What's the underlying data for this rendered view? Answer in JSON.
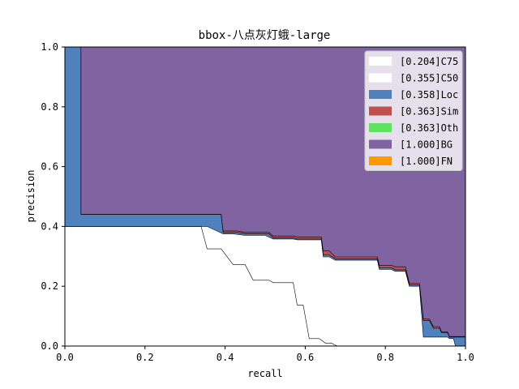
{
  "chart_data": {
    "type": "area",
    "title": "bbox-八点灰灯蛾-large",
    "xlabel": "recall",
    "ylabel": "precision",
    "xlim": [
      0,
      1
    ],
    "ylim": [
      0,
      1
    ],
    "x_ticks": [
      "0.0",
      "0.2",
      "0.4",
      "0.6",
      "0.8",
      "1.0"
    ],
    "y_ticks": [
      "0.0",
      "0.2",
      "0.4",
      "0.6",
      "0.8",
      "1.0"
    ],
    "grid": false,
    "legend_position": "top-right",
    "legend": [
      {
        "label": "[0.204]C75",
        "color": "#ffffff"
      },
      {
        "label": "[0.355]C50",
        "color": "#ffffff"
      },
      {
        "label": "[0.358]Loc",
        "color": "#4f81bd"
      },
      {
        "label": "[0.363]Sim",
        "color": "#c0504d"
      },
      {
        "label": "[0.363]Oth",
        "color": "#5ee35e"
      },
      {
        "label": "[1.000]BG",
        "color": "#8064a2"
      },
      {
        "label": "[1.000]FN",
        "color": "#ff9900"
      }
    ],
    "series": [
      {
        "name": "[0.204]C75",
        "points": [
          [
            0,
            0.4
          ],
          [
            0.34,
            0.4
          ],
          [
            0.355,
            0.325
          ],
          [
            0.39,
            0.325
          ],
          [
            0.42,
            0.272
          ],
          [
            0.45,
            0.272
          ],
          [
            0.47,
            0.22
          ],
          [
            0.51,
            0.22
          ],
          [
            0.52,
            0.212
          ],
          [
            0.57,
            0.212
          ],
          [
            0.58,
            0.137
          ],
          [
            0.595,
            0.137
          ],
          [
            0.61,
            0.025
          ],
          [
            0.635,
            0.025
          ],
          [
            0.65,
            0.01
          ],
          [
            0.665,
            0.01
          ],
          [
            0.68,
            0
          ],
          [
            1,
            0
          ]
        ]
      },
      {
        "name": "[0.355]C50",
        "points": [
          [
            0,
            0.4
          ],
          [
            0.34,
            0.4
          ],
          [
            0.355,
            0.4
          ],
          [
            0.395,
            0.375
          ],
          [
            0.42,
            0.375
          ],
          [
            0.45,
            0.37
          ],
          [
            0.5,
            0.37
          ],
          [
            0.52,
            0.358
          ],
          [
            0.57,
            0.358
          ],
          [
            0.58,
            0.355
          ],
          [
            0.62,
            0.355
          ],
          [
            0.64,
            0.355
          ],
          [
            0.645,
            0.298
          ],
          [
            0.66,
            0.298
          ],
          [
            0.675,
            0.287
          ],
          [
            0.78,
            0.287
          ],
          [
            0.785,
            0.256
          ],
          [
            0.815,
            0.256
          ],
          [
            0.825,
            0.25
          ],
          [
            0.85,
            0.25
          ],
          [
            0.86,
            0.2
          ],
          [
            0.885,
            0.2
          ],
          [
            0.895,
            0.03
          ],
          [
            0.93,
            0.03
          ],
          [
            0.935,
            0.03
          ],
          [
            0.955,
            0.03
          ],
          [
            0.96,
            0.025
          ],
          [
            0.97,
            0.025
          ],
          [
            0.975,
            0
          ],
          [
            1,
            0
          ]
        ]
      },
      {
        "name": "[0.358]Loc",
        "points": [
          [
            0,
            1
          ],
          [
            0.04,
            1
          ],
          [
            0.04,
            0.44
          ],
          [
            0.39,
            0.44
          ],
          [
            0.395,
            0.38
          ],
          [
            0.43,
            0.38
          ],
          [
            0.45,
            0.375
          ],
          [
            0.51,
            0.375
          ],
          [
            0.52,
            0.362
          ],
          [
            0.57,
            0.362
          ],
          [
            0.58,
            0.358
          ],
          [
            0.62,
            0.358
          ],
          [
            0.64,
            0.358
          ],
          [
            0.645,
            0.305
          ],
          [
            0.66,
            0.305
          ],
          [
            0.675,
            0.292
          ],
          [
            0.78,
            0.292
          ],
          [
            0.785,
            0.262
          ],
          [
            0.815,
            0.262
          ],
          [
            0.825,
            0.255
          ],
          [
            0.85,
            0.255
          ],
          [
            0.86,
            0.205
          ],
          [
            0.885,
            0.205
          ],
          [
            0.895,
            0.085
          ],
          [
            0.91,
            0.085
          ],
          [
            0.92,
            0.06
          ],
          [
            0.935,
            0.06
          ],
          [
            0.94,
            0.045
          ],
          [
            0.955,
            0.045
          ],
          [
            0.96,
            0.03
          ],
          [
            0.985,
            0.03
          ],
          [
            1,
            0.03
          ]
        ]
      },
      {
        "name": "[0.363]Sim",
        "points": [
          [
            0,
            1
          ],
          [
            0.04,
            1
          ],
          [
            0.04,
            0.44
          ],
          [
            0.39,
            0.44
          ],
          [
            0.395,
            0.385
          ],
          [
            0.43,
            0.385
          ],
          [
            0.45,
            0.38
          ],
          [
            0.51,
            0.38
          ],
          [
            0.52,
            0.368
          ],
          [
            0.57,
            0.368
          ],
          [
            0.58,
            0.365
          ],
          [
            0.62,
            0.365
          ],
          [
            0.64,
            0.365
          ],
          [
            0.645,
            0.318
          ],
          [
            0.66,
            0.318
          ],
          [
            0.675,
            0.298
          ],
          [
            0.78,
            0.298
          ],
          [
            0.785,
            0.27
          ],
          [
            0.815,
            0.27
          ],
          [
            0.825,
            0.265
          ],
          [
            0.85,
            0.265
          ],
          [
            0.86,
            0.21
          ],
          [
            0.885,
            0.21
          ],
          [
            0.895,
            0.09
          ],
          [
            0.91,
            0.09
          ],
          [
            0.92,
            0.065
          ],
          [
            0.935,
            0.065
          ],
          [
            0.94,
            0.048
          ],
          [
            0.955,
            0.048
          ],
          [
            0.96,
            0.032
          ],
          [
            0.985,
            0.032
          ],
          [
            1,
            0.032
          ]
        ]
      },
      {
        "name": "[1.000]BG",
        "points": [
          [
            0,
            1
          ],
          [
            1,
            1
          ]
        ]
      }
    ]
  }
}
